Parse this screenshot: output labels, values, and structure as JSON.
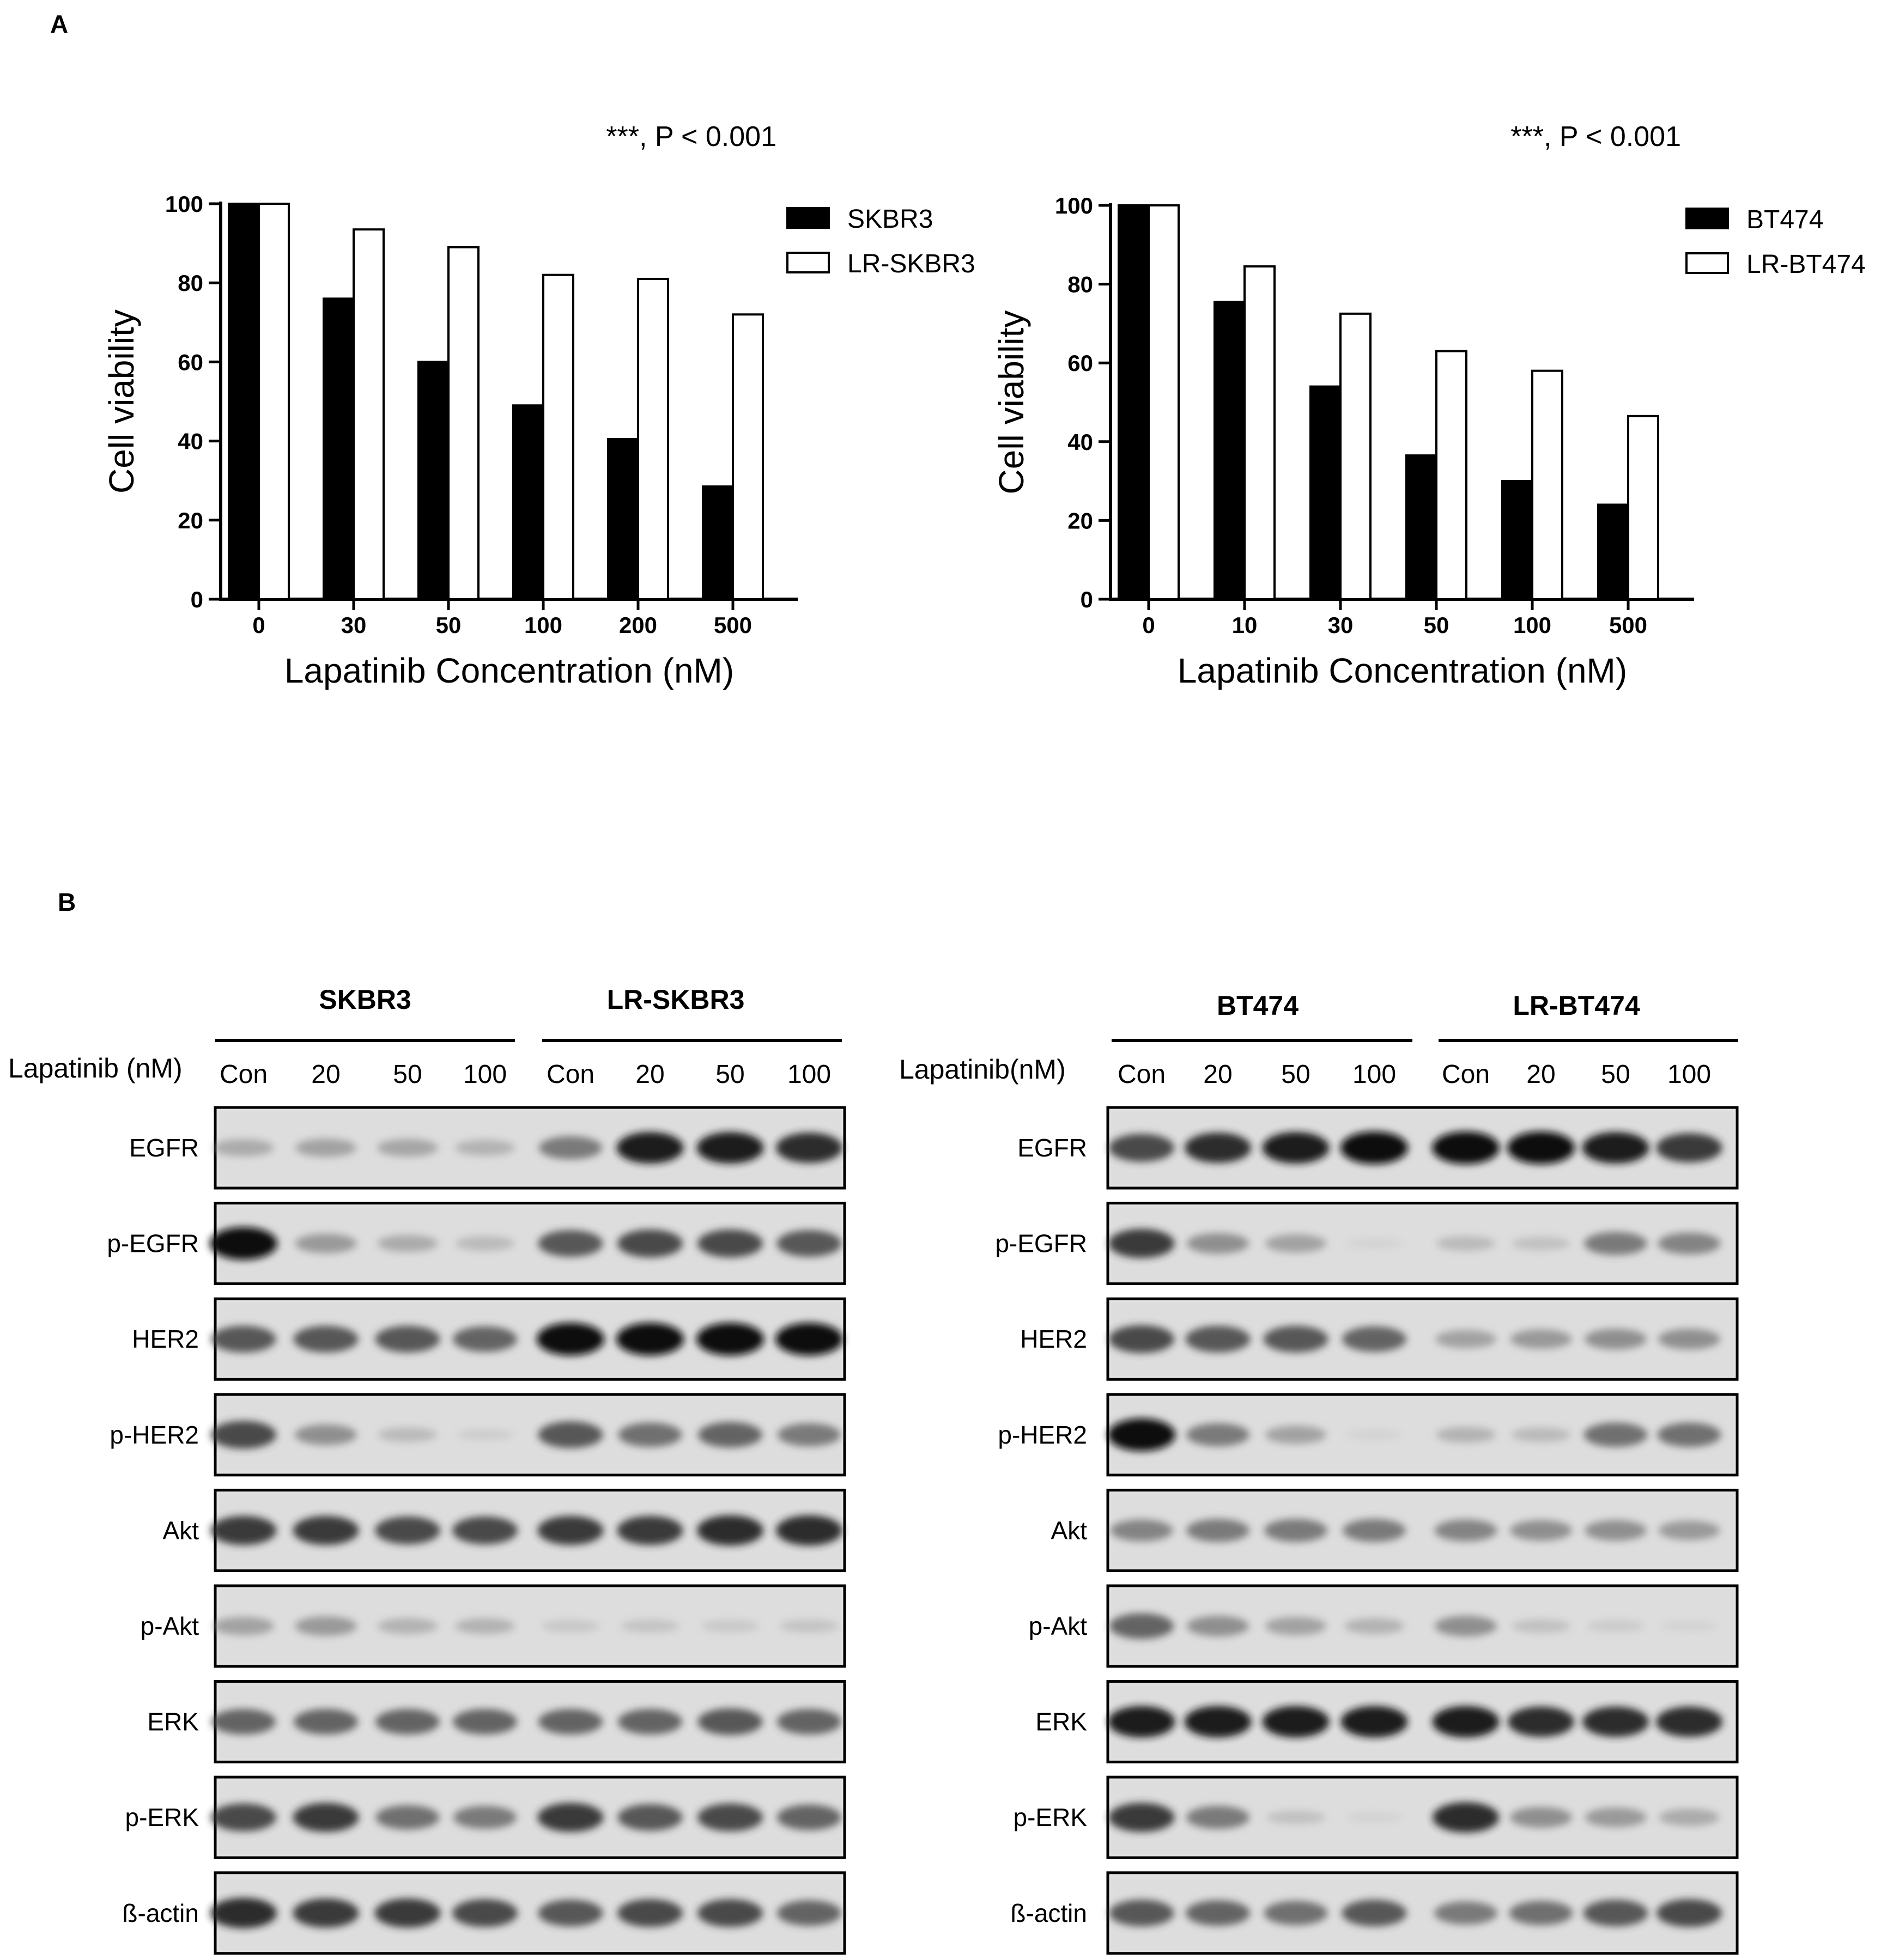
{
  "panel_a": {
    "label": "A"
  },
  "panel_b": {
    "label": "B"
  },
  "chart_data": [
    {
      "type": "bar",
      "annotation": "***, P < 0.001",
      "categories": [
        "0",
        "30",
        "50",
        "100",
        "200",
        "500"
      ],
      "series": [
        {
          "name": "SKBR3",
          "values": [
            100,
            76,
            60,
            49,
            40.5,
            28.5
          ]
        },
        {
          "name": "LR-SKBR3",
          "values": [
            100,
            93.5,
            89,
            82,
            81,
            72
          ]
        }
      ],
      "xlabel": "Lapatinib Concentration (nM)",
      "ylabel": "Cell viability",
      "ylim": [
        0,
        100
      ],
      "yticks": [
        "0",
        "20",
        "40",
        "60",
        "80",
        "100"
      ],
      "legend_position": "top-right",
      "grid": false,
      "colors": {
        "SKBR3": "#000000",
        "LR-SKBR3": "#ffffff"
      }
    },
    {
      "type": "bar",
      "annotation": "***, P < 0.001",
      "categories": [
        "0",
        "10",
        "30",
        "50",
        "100",
        "500"
      ],
      "series": [
        {
          "name": "BT474",
          "values": [
            100,
            75.5,
            54,
            36.5,
            30,
            24
          ]
        },
        {
          "name": "LR-BT474",
          "values": [
            100,
            84.5,
            72.5,
            63,
            58,
            46.5
          ]
        }
      ],
      "xlabel": "Lapatinib Concentration (nM)",
      "ylabel": "Cell viability",
      "ylim": [
        0,
        100
      ],
      "yticks": [
        "0",
        "20",
        "40",
        "60",
        "80",
        "100"
      ],
      "legend_position": "top-right",
      "grid": false,
      "colors": {
        "BT474": "#000000",
        "LR-BT474": "#ffffff"
      }
    }
  ],
  "blots": [
    {
      "groups": [
        "SKBR3",
        "LR-SKBR3"
      ],
      "treatment_label": "Lapatinib (nM)",
      "lanes": [
        "Con",
        "20",
        "50",
        "100",
        "Con",
        "20",
        "50",
        "100"
      ],
      "rows": [
        {
          "name": "EGFR",
          "intensity": [
            0.35,
            0.4,
            0.38,
            0.3,
            0.6,
            0.95,
            0.95,
            0.9
          ]
        },
        {
          "name": "p-EGFR",
          "intensity": [
            1.0,
            0.45,
            0.35,
            0.25,
            0.75,
            0.8,
            0.8,
            0.75
          ]
        },
        {
          "name": "HER2",
          "intensity": [
            0.75,
            0.75,
            0.75,
            0.7,
            1.0,
            1.0,
            1.0,
            1.0
          ]
        },
        {
          "name": "p-HER2",
          "intensity": [
            0.8,
            0.5,
            0.25,
            0.1,
            0.75,
            0.65,
            0.7,
            0.6
          ]
        },
        {
          "name": "Akt",
          "intensity": [
            0.85,
            0.85,
            0.8,
            0.8,
            0.85,
            0.85,
            0.9,
            0.9
          ]
        },
        {
          "name": "p-Akt",
          "intensity": [
            0.4,
            0.45,
            0.3,
            0.3,
            0.15,
            0.18,
            0.14,
            0.18
          ]
        },
        {
          "name": "ERK",
          "intensity": [
            0.7,
            0.7,
            0.7,
            0.7,
            0.7,
            0.7,
            0.75,
            0.7
          ]
        },
        {
          "name": "p-ERK",
          "intensity": [
            0.8,
            0.85,
            0.65,
            0.6,
            0.85,
            0.75,
            0.8,
            0.7
          ]
        },
        {
          "name": "ß-actin",
          "intensity": [
            0.9,
            0.85,
            0.85,
            0.8,
            0.75,
            0.8,
            0.8,
            0.7
          ]
        }
      ]
    },
    {
      "groups": [
        "BT474",
        "LR-BT474"
      ],
      "treatment_label": "Lapatinib(nM)",
      "lanes": [
        "Con",
        "20",
        "50",
        "100",
        "Con",
        "20",
        "50",
        "100"
      ],
      "rows": [
        {
          "name": "EGFR",
          "intensity": [
            0.8,
            0.9,
            0.95,
            1.0,
            1.0,
            1.0,
            0.95,
            0.85
          ]
        },
        {
          "name": "p-EGFR",
          "intensity": [
            0.85,
            0.5,
            0.4,
            0.05,
            0.25,
            0.2,
            0.6,
            0.55
          ]
        },
        {
          "name": "HER2",
          "intensity": [
            0.8,
            0.75,
            0.75,
            0.7,
            0.4,
            0.45,
            0.5,
            0.5
          ]
        },
        {
          "name": "p-HER2",
          "intensity": [
            1.0,
            0.6,
            0.4,
            0.05,
            0.3,
            0.25,
            0.65,
            0.65
          ]
        },
        {
          "name": "Akt",
          "intensity": [
            0.55,
            0.6,
            0.6,
            0.6,
            0.55,
            0.5,
            0.5,
            0.45
          ]
        },
        {
          "name": "p-Akt",
          "intensity": [
            0.7,
            0.5,
            0.4,
            0.3,
            0.5,
            0.2,
            0.12,
            0.05
          ]
        },
        {
          "name": "ERK",
          "intensity": [
            0.95,
            0.95,
            0.95,
            0.95,
            0.95,
            0.9,
            0.9,
            0.9
          ]
        },
        {
          "name": "p-ERK",
          "intensity": [
            0.85,
            0.6,
            0.2,
            0.05,
            0.9,
            0.5,
            0.45,
            0.35
          ]
        },
        {
          "name": "ß-actin",
          "intensity": [
            0.75,
            0.7,
            0.65,
            0.75,
            0.6,
            0.65,
            0.75,
            0.8
          ]
        }
      ]
    }
  ]
}
